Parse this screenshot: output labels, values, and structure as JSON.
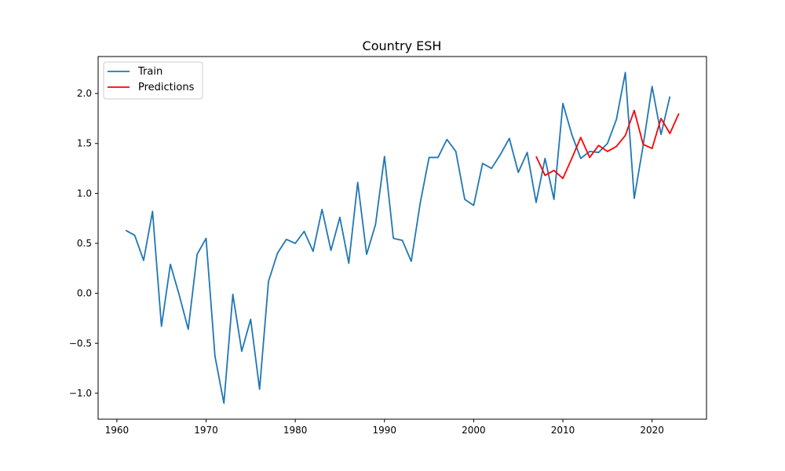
{
  "chart_data": {
    "type": "line",
    "title": "Country ESH",
    "xlabel": "",
    "ylabel": "",
    "xlim": [
      1957.9,
      2026.1
    ],
    "ylim": [
      -1.26,
      2.37
    ],
    "x_ticks": [
      1960,
      1970,
      1980,
      1990,
      2000,
      2010,
      2020
    ],
    "x_tick_labels": [
      "1960",
      "1970",
      "1980",
      "1990",
      "2000",
      "2010",
      "2020"
    ],
    "y_ticks": [
      -1.0,
      -0.5,
      0.0,
      0.5,
      1.0,
      1.5,
      2.0
    ],
    "y_tick_labels": [
      "−1.0",
      "−0.5",
      "0.0",
      "0.5",
      "1.0",
      "1.5",
      "2.0"
    ],
    "grid": false,
    "legend_position": "top-left",
    "series": [
      {
        "name": "Train",
        "color": "#1f77b4",
        "x": [
          1961,
          1962,
          1963,
          1964,
          1965,
          1966,
          1967,
          1968,
          1969,
          1970,
          1971,
          1972,
          1973,
          1974,
          1975,
          1976,
          1977,
          1978,
          1979,
          1980,
          1981,
          1982,
          1983,
          1984,
          1985,
          1986,
          1987,
          1988,
          1989,
          1990,
          1991,
          1992,
          1993,
          1994,
          1995,
          1996,
          1997,
          1998,
          1999,
          2000,
          2001,
          2002,
          2003,
          2004,
          2005,
          2006,
          2007,
          2008,
          2009,
          2010,
          2011,
          2012,
          2013,
          2014,
          2015,
          2016,
          2017,
          2018,
          2019,
          2020,
          2021,
          2022
        ],
        "y": [
          0.63,
          0.58,
          0.33,
          0.82,
          -0.33,
          0.29,
          -0.02,
          -0.36,
          0.39,
          0.55,
          -0.63,
          -1.1,
          -0.01,
          -0.58,
          -0.26,
          -0.96,
          0.12,
          0.4,
          0.54,
          0.5,
          0.62,
          0.42,
          0.84,
          0.43,
          0.76,
          0.3,
          1.11,
          0.39,
          0.69,
          1.37,
          0.55,
          0.53,
          0.32,
          0.9,
          1.36,
          1.36,
          1.54,
          1.42,
          0.94,
          0.88,
          1.3,
          1.25,
          1.39,
          1.55,
          1.21,
          1.41,
          0.91,
          1.35,
          0.94,
          1.9,
          1.59,
          1.35,
          1.42,
          1.41,
          1.5,
          1.74,
          2.21,
          0.95,
          1.48,
          2.07,
          1.59,
          1.97
        ]
      },
      {
        "name": "Predictions",
        "color": "#ff0000",
        "x": [
          2007,
          2008,
          2009,
          2010,
          2011,
          2012,
          2013,
          2014,
          2015,
          2016,
          2017,
          2018,
          2019,
          2020,
          2021,
          2022,
          2023
        ],
        "y": [
          1.37,
          1.18,
          1.23,
          1.15,
          1.35,
          1.56,
          1.36,
          1.48,
          1.42,
          1.47,
          1.58,
          1.83,
          1.49,
          1.45,
          1.75,
          1.6,
          1.8
        ]
      }
    ]
  }
}
